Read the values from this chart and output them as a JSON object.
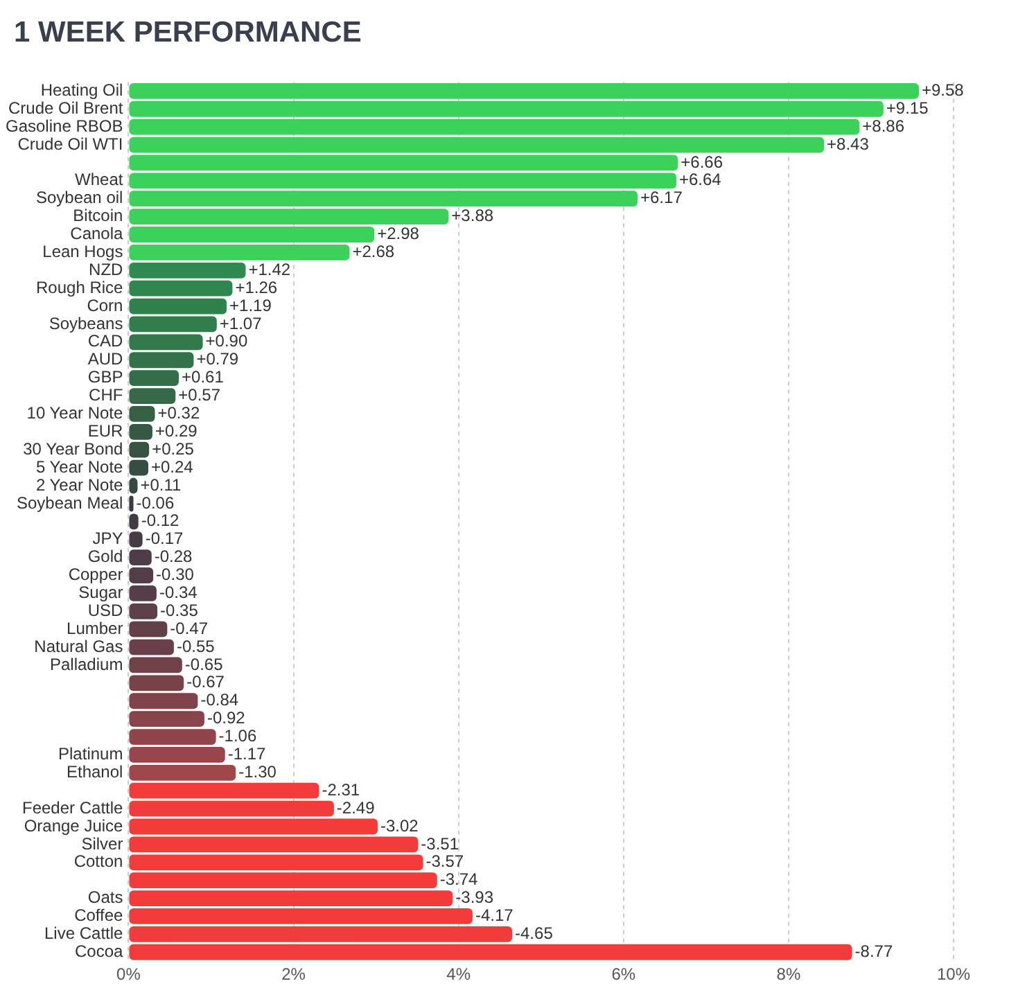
{
  "chart_data": {
    "type": "bar",
    "orientation": "horizontal",
    "title": "1 WEEK PERFORMANCE",
    "categories": [
      "Heating Oil",
      "Crude Oil Brent",
      "Gasoline RBOB",
      "Crude Oil WTI",
      null,
      "Wheat",
      "Soybean oil",
      "Bitcoin",
      "Canola",
      "Lean Hogs",
      "NZD",
      "Rough Rice",
      "Corn",
      "Soybeans",
      "CAD",
      "AUD",
      "GBP",
      "CHF",
      "10 Year Note",
      "EUR",
      "30 Year Bond",
      "5 Year Note",
      "2 Year Note",
      "Soybean Meal",
      null,
      "JPY",
      "Gold",
      "Copper",
      "Sugar",
      "USD",
      "Lumber",
      "Natural Gas",
      "Palladium",
      null,
      null,
      null,
      null,
      "Platinum",
      "Ethanol",
      null,
      "Feeder Cattle",
      "Orange Juice",
      "Silver",
      "Cotton",
      null,
      "Oats",
      "Coffee",
      "Live Cattle",
      "Cocoa"
    ],
    "values": [
      9.58,
      9.15,
      8.86,
      8.43,
      6.66,
      6.64,
      6.17,
      3.88,
      2.98,
      2.68,
      1.42,
      1.26,
      1.19,
      1.07,
      0.9,
      0.79,
      0.61,
      0.57,
      0.32,
      0.29,
      0.25,
      0.24,
      0.11,
      -0.06,
      -0.12,
      -0.17,
      -0.28,
      -0.3,
      -0.34,
      -0.35,
      -0.47,
      -0.55,
      -0.65,
      -0.67,
      -0.84,
      -0.92,
      -1.06,
      -1.17,
      -1.3,
      -2.31,
      -2.49,
      -3.02,
      -3.51,
      -3.57,
      -3.74,
      -3.93,
      -4.17,
      -4.65,
      -8.77
    ],
    "base": [
      0,
      0,
      0,
      0,
      0,
      0,
      0,
      0,
      0,
      0,
      0,
      0,
      0,
      0,
      0,
      0,
      0,
      0,
      0,
      0,
      0,
      0,
      0,
      0.06,
      0.12,
      0.17,
      0.28,
      0.3,
      0.34,
      0.35,
      0.47,
      0.55,
      0.65,
      0.67,
      0.84,
      0.92,
      1.06,
      1.17,
      1.3,
      2.31,
      2.49,
      3.02,
      3.51,
      3.57,
      3.74,
      3.93,
      4.17,
      4.65,
      8.77
    ],
    "value_labels": [
      "+9.58",
      "+9.15",
      "+8.86",
      "+8.43",
      "+6.66",
      "+6.64",
      "+6.17",
      "+3.88",
      "+2.98",
      "+2.68",
      "+1.42",
      "+1.26",
      "+1.19",
      "+1.07",
      "+0.90",
      "+0.79",
      "+0.61",
      "+0.57",
      "+0.32",
      "+0.29",
      "+0.25",
      "+0.24",
      "+0.11",
      "-0.06",
      "-0.12",
      "-0.17",
      "-0.28",
      "-0.30",
      "-0.34",
      "-0.35",
      "-0.47",
      "-0.55",
      "-0.65",
      "-0.67",
      "-0.84",
      "-0.92",
      "-1.06",
      "-1.17",
      "-1.30",
      "-2.31",
      "-2.49",
      "-3.02",
      "-3.51",
      "-3.57",
      "-3.74",
      "-3.93",
      "-4.17",
      "-4.65",
      "-8.77"
    ],
    "colors": [
      "#3bd15b",
      "#3bd15b",
      "#3bd15b",
      "#3bd15b",
      "#3bd15b",
      "#3bd15b",
      "#3bd15b",
      "#3bd15b",
      "#3bd15b",
      "#3bd15b",
      "#2f8a4f",
      "#2f864e",
      "#30824d",
      "#317d4c",
      "#32784b",
      "#33734a",
      "#346e49",
      "#356948",
      "#356044",
      "#355a43",
      "#355442",
      "#364e41",
      "#374940",
      "#3d3a42",
      "#423a44",
      "#473b46",
      "#4c3c47",
      "#523d48",
      "#573e48",
      "#5c3f49",
      "#633f4a",
      "#6a404a",
      "#71414a",
      "#78424b",
      "#80434b",
      "#88444b",
      "#90454b",
      "#98464b",
      "#a0474b",
      "#f23b3b",
      "#f23b3b",
      "#f23b3b",
      "#f23b3b",
      "#f23b3b",
      "#f23b3b",
      "#f23b3b",
      "#f23b3b",
      "#f23b3b",
      "#f23b3b"
    ],
    "xlim": [
      0,
      10
    ],
    "xticks": [
      {
        "value": 0,
        "label": "0%"
      },
      {
        "value": 2,
        "label": "2%"
      },
      {
        "value": 4,
        "label": "4%"
      },
      {
        "value": 6,
        "label": "6%"
      },
      {
        "value": 8,
        "label": "8%"
      },
      {
        "value": 10,
        "label": "10%"
      }
    ],
    "grid": "x",
    "legend": false
  }
}
